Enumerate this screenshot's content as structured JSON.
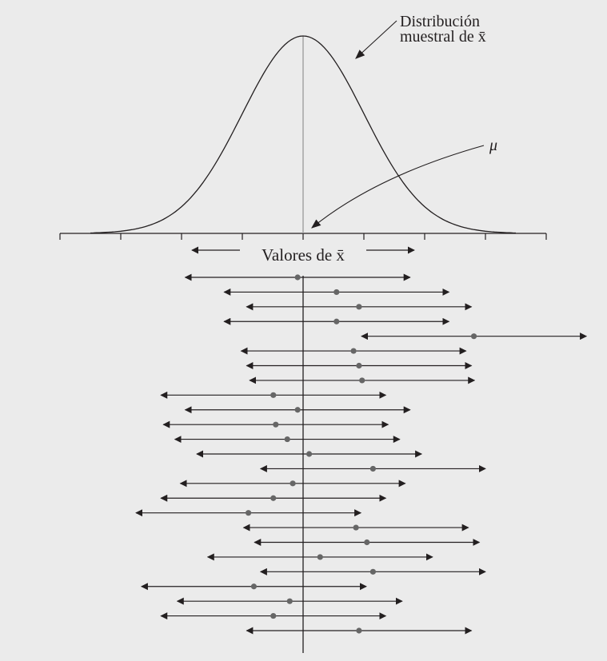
{
  "labels": {
    "distribution_line1": "Distribución",
    "distribution_line2": "muestral de x̄",
    "mu": "μ",
    "axis": "Valores de x̄"
  },
  "colors": {
    "background": "#ebebeb",
    "ink": "#231f20",
    "mean_line": "#9a9a9a",
    "dot": "#666666"
  },
  "diagram": {
    "axis_tick_count": 9,
    "interval_half_width_sd": 1.85,
    "sample_means_sd": [
      -0.09,
      0.55,
      0.92,
      0.55,
      2.81,
      0.83,
      0.92,
      0.97,
      -0.49,
      -0.09,
      -0.45,
      -0.26,
      0.1,
      1.15,
      -0.17,
      -0.49,
      -0.9,
      0.87,
      1.05,
      0.28,
      1.15,
      -0.81,
      -0.22,
      -0.49,
      0.92
    ]
  }
}
